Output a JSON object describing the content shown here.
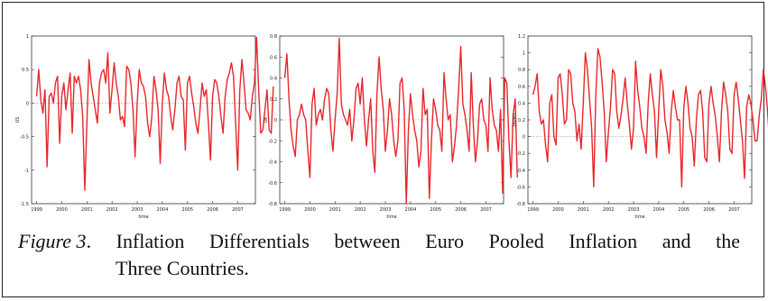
{
  "caption": {
    "label": "Figure 3",
    "line1_words": [
      "Inflation",
      "Differentials",
      "between",
      "Euro",
      "Pooled",
      "Inflation",
      "and",
      "the"
    ],
    "line2": "Three Countries."
  },
  "chart_data": [
    {
      "type": "line",
      "xlabel": "time",
      "ylabel": "US",
      "xlim": [
        1998.8,
        2007.7
      ],
      "ylim": [
        -1.5,
        1
      ],
      "xticks": [
        1999,
        2000,
        2001,
        2002,
        2003,
        2004,
        2005,
        2006,
        2007
      ],
      "yticks": [
        -1.5,
        -1,
        -0.5,
        0,
        0.5,
        1
      ],
      "series": [
        {
          "color": "#e8262a",
          "x_start": 1999.0,
          "step": 0.0833,
          "values": [
            0.1,
            0.5,
            0.05,
            -0.15,
            0.2,
            -0.95,
            0.1,
            0.15,
            0.0,
            0.3,
            0.4,
            -0.6,
            0.1,
            0.3,
            -0.1,
            0.2,
            0.45,
            -0.45,
            0.4,
            0.3,
            0.4,
            0.2,
            -0.2,
            -1.3,
            -0.3,
            0.65,
            0.3,
            0.1,
            -0.1,
            -0.3,
            0.3,
            0.45,
            0.5,
            0.3,
            0.75,
            -0.15,
            0.2,
            0.6,
            0.3,
            0.1,
            -0.25,
            -0.2,
            -0.35,
            0.55,
            0.5,
            0.3,
            -0.1,
            -0.8,
            0.0,
            0.5,
            0.3,
            0.25,
            0.1,
            -0.3,
            -0.5,
            -0.2,
            0.4,
            0.2,
            -0.1,
            -0.9,
            0.0,
            0.45,
            0.2,
            0.1,
            -0.2,
            -0.4,
            -0.1,
            0.3,
            0.4,
            0.1,
            0.05,
            -0.7,
            0.3,
            0.4,
            0.15,
            -0.05,
            -0.3,
            -0.45,
            -0.1,
            0.3,
            0.1,
            0.2,
            -0.3,
            -0.85,
            0.1,
            0.35,
            0.3,
            0.1,
            -0.2,
            -0.45,
            0.1,
            0.35,
            0.45,
            0.6,
            0.4,
            -0.3,
            -1.0,
            0.2,
            0.65,
            0.3,
            -0.1,
            -0.15,
            -0.25,
            0.1,
            0.3,
            0.98,
            0.2,
            -0.45,
            -0.4,
            -0.1,
            0.2,
            -0.4,
            -0.45,
            0.25
          ]
        }
      ]
    },
    {
      "type": "line",
      "xlabel": "time",
      "ylabel": "UK",
      "xlim": [
        1998.8,
        2007.7
      ],
      "ylim": [
        -0.8,
        0.8
      ],
      "xticks": [
        1999,
        2000,
        2001,
        2002,
        2003,
        2004,
        2005,
        2006,
        2007
      ],
      "yticks": [
        -0.8,
        -0.6,
        -0.4,
        -0.2,
        0,
        0.2,
        0.4,
        0.6,
        0.8
      ],
      "series": [
        {
          "color": "#e8262a",
          "x_start": 1999.0,
          "step": 0.0833,
          "values": [
            0.4,
            0.63,
            0.2,
            -0.1,
            -0.25,
            -0.35,
            0.0,
            0.05,
            0.15,
            0.05,
            0.0,
            -0.3,
            -0.55,
            0.15,
            0.3,
            -0.05,
            0.05,
            0.1,
            0.0,
            0.2,
            0.3,
            0.25,
            -0.1,
            -0.3,
            0.0,
            0.25,
            0.78,
            0.15,
            0.05,
            0.0,
            -0.05,
            0.1,
            -0.2,
            0.0,
            0.3,
            0.35,
            0.15,
            0.4,
            0.0,
            -0.25,
            0.0,
            0.2,
            -0.3,
            -0.5,
            0.25,
            0.6,
            0.3,
            0.1,
            -0.3,
            -0.1,
            0.2,
            0.05,
            -0.2,
            -0.35,
            -0.2,
            0.35,
            0.4,
            0.1,
            -0.8,
            -0.1,
            0.25,
            0.05,
            -0.1,
            -0.2,
            -0.45,
            -0.3,
            0.3,
            0.05,
            0.1,
            -0.75,
            -0.2,
            0.2,
            0.1,
            -0.05,
            -0.1,
            -0.3,
            0.45,
            0.2,
            0.0,
            0.05,
            -0.4,
            -0.25,
            -0.05,
            0.3,
            0.7,
            0.15,
            0.05,
            -0.1,
            -0.3,
            0.45,
            -0.05,
            -0.4,
            -0.2,
            0.15,
            0.2,
            0.0,
            -0.05,
            -0.3,
            0.4,
            0.1,
            -0.05,
            -0.1,
            -0.3,
            0.1,
            -0.7,
            0.4,
            0.35,
            -0.2,
            -0.55,
            0.05,
            0.2,
            -0.55
          ]
        }
      ]
    },
    {
      "type": "line",
      "xlabel": "time",
      "ylabel": "Japan",
      "xlim": [
        1998.8,
        2007.7
      ],
      "ylim": [
        -0.8,
        1.2
      ],
      "xticks": [
        1999,
        2000,
        2001,
        2002,
        2003,
        2004,
        2005,
        2006,
        2007
      ],
      "yticks": [
        -0.8,
        -0.6,
        -0.4,
        -0.2,
        0,
        0.2,
        0.4,
        0.6,
        0.8,
        1,
        1.2
      ],
      "series": [
        {
          "color": "#e8262a",
          "x_start": 1999.0,
          "step": 0.0833,
          "values": [
            0.5,
            0.6,
            0.75,
            0.3,
            0.15,
            0.2,
            -0.1,
            -0.3,
            0.4,
            0.5,
            0.0,
            -0.1,
            0.7,
            0.75,
            0.5,
            0.15,
            0.2,
            0.8,
            0.75,
            0.4,
            0.3,
            -0.05,
            0.15,
            -0.15,
            0.4,
            1.0,
            0.8,
            0.45,
            0.1,
            -0.6,
            0.5,
            1.05,
            0.95,
            0.65,
            0.3,
            -0.3,
            0.05,
            0.35,
            0.8,
            0.75,
            0.3,
            0.1,
            0.25,
            0.45,
            0.7,
            0.4,
            0.15,
            -0.15,
            0.1,
            0.9,
            0.55,
            0.35,
            0.1,
            0.0,
            -0.2,
            0.4,
            0.75,
            0.5,
            0.3,
            -0.25,
            0.3,
            0.8,
            0.6,
            0.2,
            0.05,
            -0.2,
            0.3,
            0.55,
            0.35,
            0.2,
            0.2,
            -0.6,
            0.35,
            0.6,
            0.4,
            0.1,
            0.0,
            -0.35,
            0.2,
            0.5,
            0.55,
            0.3,
            -0.25,
            -0.3,
            0.4,
            0.6,
            0.4,
            0.25,
            0.0,
            -0.3,
            0.3,
            0.65,
            0.5,
            0.3,
            -0.15,
            -0.2,
            0.5,
            0.65,
            0.45,
            0.2,
            -0.05,
            -0.5,
            0.35,
            0.5,
            0.4,
            0.2,
            -0.05,
            -0.05,
            0.25,
            0.45,
            0.8,
            0.6,
            0.3,
            -0.1,
            0.25,
            -0.35,
            -0.45
          ]
        }
      ]
    }
  ]
}
